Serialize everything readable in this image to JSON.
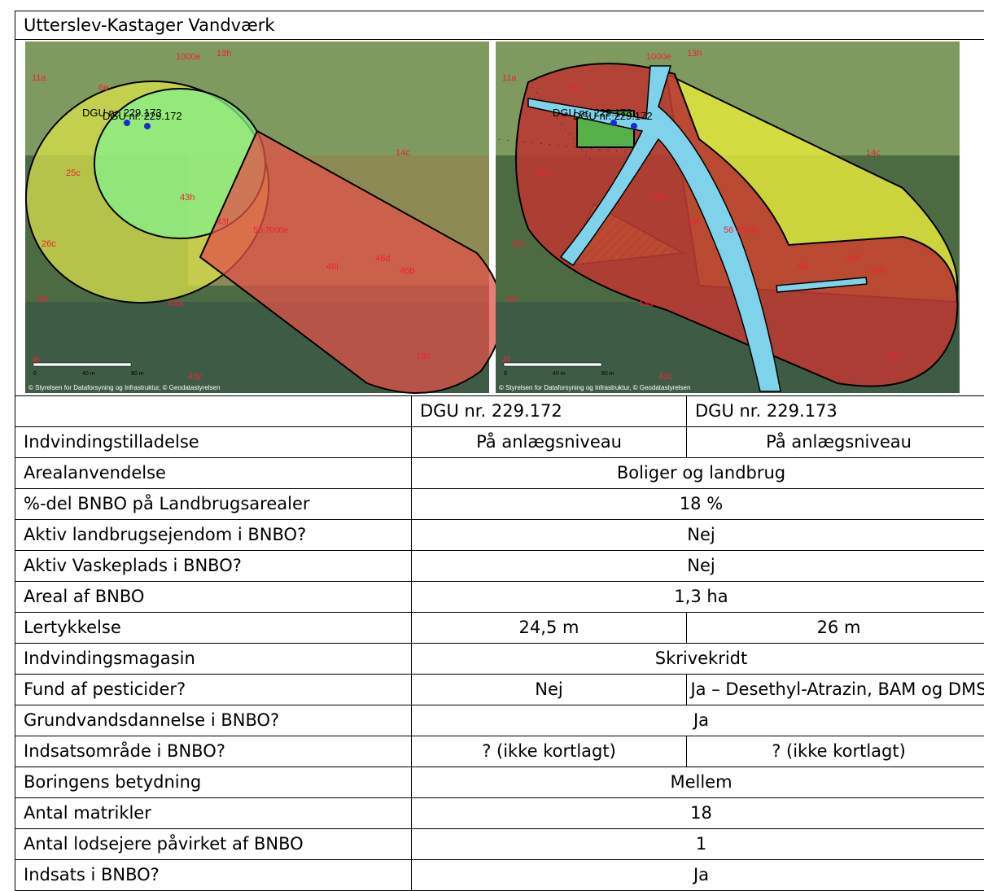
{
  "title": "Utterslev-Kastager Vandværk",
  "map": {
    "labels": [
      "DGU nr. 229.173",
      "DGU nr. 229.172",
      "11a",
      "6e",
      "13h",
      "1000e",
      "14c",
      "25c",
      "43h",
      "43l",
      "7000e",
      "46i",
      "46d",
      "46b",
      "43a",
      "13c",
      "65",
      "26c",
      "4f",
      "43c",
      "56"
    ],
    "scale": [
      "0",
      "40 m",
      "80 m"
    ],
    "copyright": "© Styrelsen for Dataforsyning og Infrastruktur, © Geodatastyrelsen"
  },
  "table": {
    "columns": [
      "DGU nr. 229.172",
      "DGU nr. 229.173"
    ],
    "rows": [
      {
        "label": "Indvindingstilladelse",
        "values": [
          "På anlægsniveau",
          "På anlægsniveau"
        ]
      },
      {
        "label": "Arealanvendelse",
        "values": [
          "Boliger og landbrug"
        ]
      },
      {
        "label": "%-del BNBO på Landbrugsarealer",
        "values": [
          "18 %"
        ]
      },
      {
        "label": "Aktiv landbrugsejendom i BNBO?",
        "values": [
          "Nej"
        ]
      },
      {
        "label": "Aktiv Vaskeplads i BNBO?",
        "values": [
          "Nej"
        ]
      },
      {
        "label": "Areal af BNBO",
        "values": [
          "1,3 ha"
        ]
      },
      {
        "label": "Lertykkelse",
        "values": [
          "24,5 m",
          "26 m"
        ]
      },
      {
        "label": "Indvindingsmagasin",
        "values": [
          "Skrivekridt"
        ]
      },
      {
        "label": "Fund af pesticider?",
        "values": [
          "Nej",
          "Ja – Desethyl-Atrazin, BAM og DMS"
        ]
      },
      {
        "label": "Grundvandsdannelse i BNBO?",
        "values": [
          "Ja"
        ]
      },
      {
        "label": "Indsatsområde i BNBO?",
        "values": [
          "? (ikke kortlagt)",
          "? (ikke kortlagt)"
        ]
      },
      {
        "label": "Boringens betydning",
        "values": [
          "Mellem"
        ]
      },
      {
        "label": "Antal matrikler",
        "values": [
          "18"
        ]
      },
      {
        "label": "Antal lodsejere påvirket af BNBO",
        "values": [
          "1"
        ]
      },
      {
        "label": "Indsats i BNBO?",
        "values": [
          "Ja"
        ]
      }
    ]
  }
}
